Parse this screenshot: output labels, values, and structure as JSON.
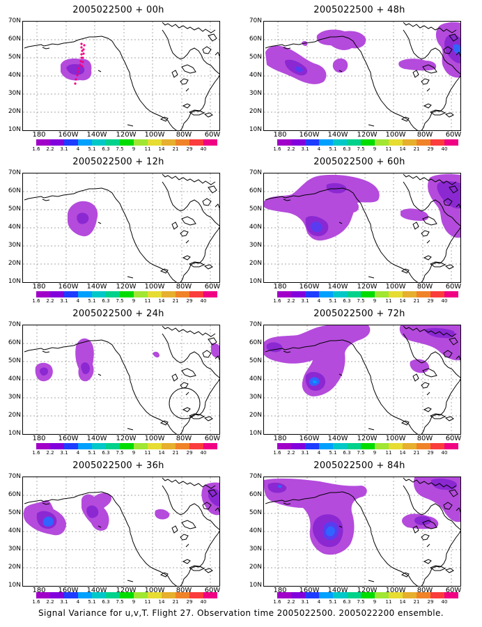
{
  "caption": "Signal Variance for u,v,T. Flight 27. Observation time 2005022500. 2005022200 ensemble.",
  "axes": {
    "lat_labels": [
      "70N",
      "60N",
      "50N",
      "40N",
      "30N",
      "20N",
      "10N"
    ],
    "lon_labels": [
      "180",
      "160W",
      "140W",
      "120W",
      "100W",
      "80W",
      "60W"
    ]
  },
  "colorbar": {
    "labels": [
      "1.6",
      "2.2",
      "3.1",
      "4",
      "5.1",
      "6.3",
      "7.5",
      "9",
      "11",
      "14",
      "21",
      "29",
      "40"
    ],
    "colors": [
      "#a000c8",
      "#8200dc",
      "#1e3cff",
      "#00a0ff",
      "#00c8c8",
      "#00d28c",
      "#00dc00",
      "#a0e632",
      "#e6dc32",
      "#e6af2d",
      "#f08228",
      "#fa3c3c",
      "#f00082"
    ]
  },
  "colors": {
    "fill_light": "#b44bdc",
    "fill_mid": "#8b28d2",
    "fill_dark": "#5a3cf0",
    "fill_blue": "#3264ff",
    "fill_cyan": "#00a0ff",
    "fill_red": "#f00082"
  },
  "panels": [
    {
      "title": "2005022500 + 00h"
    },
    {
      "title": "2005022500 + 48h"
    },
    {
      "title": "2005022500 + 12h"
    },
    {
      "title": "2005022500 + 60h"
    },
    {
      "title": "2005022500 + 24h"
    },
    {
      "title": "2005022500 + 72h"
    },
    {
      "title": "2005022500 + 36h"
    },
    {
      "title": "2005022500 + 84h"
    }
  ]
}
